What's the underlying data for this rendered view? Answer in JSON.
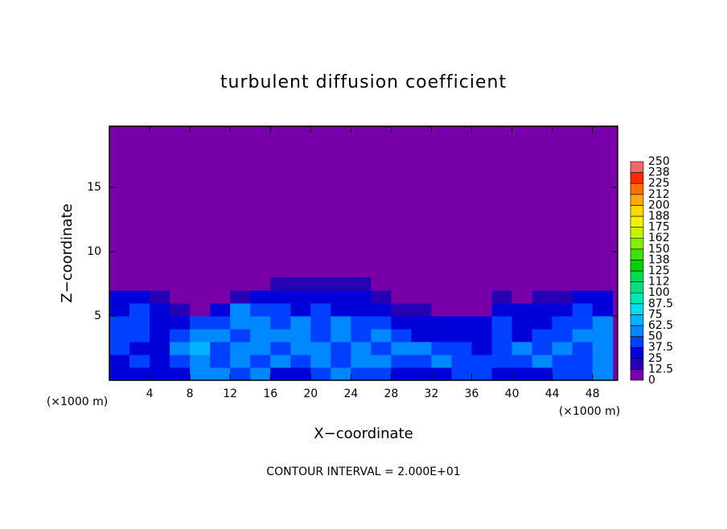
{
  "chart_data": {
    "type": "heatmap",
    "title": "turbulent diffusion coefficient",
    "x_label": "X−coordinate",
    "y_label": "Z−coordinate",
    "x_unit_labels": [
      "(×1000 m)",
      "(×1000 m)"
    ],
    "footer": "CONTOUR INTERVAL = 2.000E+01",
    "xlim": [
      0,
      50.5
    ],
    "ylim": [
      0,
      19.75
    ],
    "xticks": [
      4,
      8,
      12,
      16,
      20,
      24,
      28,
      32,
      36,
      40,
      44,
      48
    ],
    "yticks": [
      5,
      10,
      15
    ],
    "x": [
      1,
      3,
      5,
      7,
      9,
      11,
      13,
      15,
      17,
      19,
      21,
      23,
      25,
      27,
      29,
      31,
      33,
      35,
      37,
      39,
      41,
      43,
      45,
      47,
      49
    ],
    "y": [
      0.5,
      1.5,
      2.5,
      3.5,
      4.5,
      5.5,
      6.5,
      7.5
    ],
    "values": [
      [
        30,
        30,
        25,
        35,
        60,
        50,
        40,
        55,
        35,
        30,
        40,
        50,
        45,
        40,
        35,
        30,
        35,
        40,
        40,
        35,
        30,
        35,
        40,
        45,
        50
      ],
      [
        35,
        40,
        30,
        45,
        55,
        45,
        60,
        45,
        50,
        40,
        55,
        45,
        50,
        55,
        40,
        45,
        50,
        45,
        40,
        40,
        45,
        50,
        40,
        45,
        55
      ],
      [
        40,
        35,
        35,
        50,
        70,
        40,
        55,
        50,
        45,
        50,
        60,
        40,
        60,
        45,
        55,
        50,
        45,
        40,
        35,
        45,
        50,
        45,
        50,
        40,
        50
      ],
      [
        45,
        40,
        30,
        40,
        55,
        60,
        45,
        60,
        50,
        55,
        45,
        55,
        45,
        50,
        40,
        35,
        35,
        30,
        30,
        40,
        35,
        40,
        45,
        50,
        55
      ],
      [
        40,
        45,
        35,
        35,
        45,
        40,
        50,
        55,
        40,
        50,
        45,
        50,
        40,
        45,
        35,
        30,
        25,
        30,
        30,
        45,
        25,
        30,
        40,
        45,
        50
      ],
      [
        35,
        40,
        30,
        20,
        10,
        25,
        50,
        45,
        40,
        35,
        40,
        35,
        35,
        30,
        20,
        15,
        10,
        10,
        10,
        30,
        25,
        30,
        35,
        40,
        35
      ],
      [
        25,
        25,
        15,
        5,
        0,
        5,
        20,
        25,
        30,
        25,
        30,
        25,
        25,
        20,
        5,
        0,
        0,
        0,
        0,
        20,
        10,
        15,
        20,
        25,
        25
      ],
      [
        0,
        0,
        0,
        0,
        0,
        0,
        0,
        5,
        20,
        20,
        20,
        20,
        15,
        10,
        0,
        0,
        0,
        0,
        0,
        0,
        0,
        0,
        0,
        0,
        0
      ]
    ],
    "colorbar": {
      "ticks": [
        0,
        12.5,
        25,
        37.5,
        50,
        62.5,
        75,
        87.5,
        100,
        112,
        125,
        138,
        150,
        162,
        175,
        188,
        200,
        212,
        225,
        238,
        250
      ],
      "colors": [
        "#7800a8",
        "#2800b4",
        "#0000d8",
        "#0040ff",
        "#0088ff",
        "#00b4ff",
        "#00dcf0",
        "#00e6b4",
        "#00e082",
        "#00d850",
        "#00d000",
        "#40e000",
        "#80f000",
        "#c8f000",
        "#f0f000",
        "#ffd800",
        "#ffa800",
        "#ff7000",
        "#ff2800",
        "#f06868"
      ]
    }
  }
}
